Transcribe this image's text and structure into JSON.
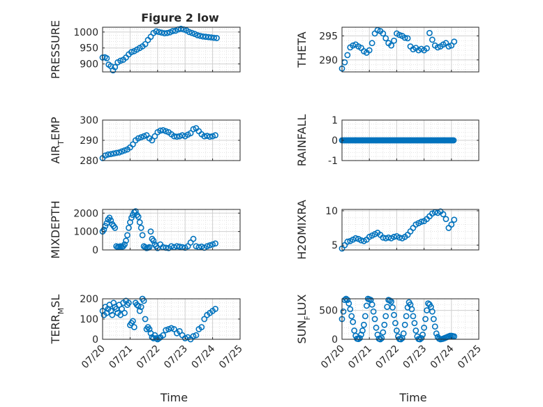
{
  "title": "Figure 2 low",
  "chart_data": [
    {
      "type": "scatter",
      "ylabel": "PRESSURE",
      "xlabel": "",
      "xlim": [
        0,
        5
      ],
      "ylim": [
        875,
        1015
      ],
      "yticks": [
        900,
        950,
        1000
      ],
      "grid": true,
      "x": [
        0.0,
        0.08,
        0.15,
        0.22,
        0.3,
        0.38,
        0.45,
        0.55,
        0.65,
        0.75,
        0.85,
        0.95,
        1.05,
        1.15,
        1.25,
        1.35,
        1.45,
        1.55,
        1.65,
        1.75,
        1.85,
        1.95,
        2.05,
        2.15,
        2.25,
        2.35,
        2.45,
        2.55,
        2.65,
        2.75,
        2.85,
        2.95,
        3.05,
        3.15,
        3.25,
        3.35,
        3.45,
        3.55,
        3.65,
        3.75,
        3.85,
        3.95,
        4.05,
        4.15
      ],
      "y": [
        920,
        921,
        918,
        898,
        893,
        880,
        890,
        905,
        910,
        913,
        920,
        930,
        937,
        940,
        945,
        950,
        955,
        962,
        975,
        985,
        997,
        1002,
        1000,
        998,
        996,
        997,
        999,
        1003,
        1004,
        1008,
        1010,
        1008,
        1005,
        1000,
        997,
        994,
        990,
        988,
        986,
        985,
        984,
        983,
        982,
        981
      ],
      "series_color": "#0072BD"
    },
    {
      "type": "scatter",
      "ylabel": "THETA",
      "xlabel": "",
      "xlim": [
        0,
        5
      ],
      "ylim": [
        287.5,
        296.8
      ],
      "yticks": [
        290,
        295
      ],
      "grid": true,
      "x": [
        0.0,
        0.1,
        0.2,
        0.3,
        0.4,
        0.5,
        0.6,
        0.7,
        0.8,
        0.9,
        1.0,
        1.1,
        1.2,
        1.3,
        1.4,
        1.5,
        1.6,
        1.7,
        1.8,
        1.9,
        2.0,
        2.1,
        2.2,
        2.3,
        2.4,
        2.5,
        2.6,
        2.7,
        2.8,
        2.9,
        3.0,
        3.1,
        3.2,
        3.3,
        3.4,
        3.5,
        3.6,
        3.7,
        3.8,
        3.9,
        4.0,
        4.1
      ],
      "y": [
        288.2,
        289.5,
        291,
        292.6,
        293.0,
        293.2,
        292.8,
        292.5,
        291.8,
        291.5,
        292,
        293.5,
        295.5,
        296.2,
        296.0,
        295.5,
        294.5,
        293.5,
        293.0,
        294.0,
        295.5,
        295.2,
        295.0,
        294.6,
        294.5,
        292.8,
        292.2,
        292.5,
        292.0,
        292.3,
        292.0,
        292.4,
        295.6,
        294.2,
        293.0,
        292.6,
        292.8,
        293.2,
        293.5,
        292.8,
        293.0,
        293.8
      ],
      "series_color": "#0072BD"
    },
    {
      "type": "scatter",
      "ylabel": "AIR_TEMP",
      "ylabel_main": "AIR",
      "ylabel_sub": "T",
      "ylabel_rest": "EMP",
      "xlabel": "",
      "xlim": [
        0,
        5
      ],
      "ylim": [
        280,
        300
      ],
      "yticks": [
        280,
        290,
        300
      ],
      "grid": true,
      "x": [
        0.0,
        0.1,
        0.2,
        0.3,
        0.4,
        0.5,
        0.6,
        0.7,
        0.8,
        0.9,
        1.0,
        1.1,
        1.2,
        1.3,
        1.4,
        1.5,
        1.6,
        1.7,
        1.8,
        1.9,
        2.0,
        2.1,
        2.2,
        2.3,
        2.4,
        2.5,
        2.6,
        2.7,
        2.8,
        2.9,
        3.0,
        3.1,
        3.2,
        3.3,
        3.4,
        3.5,
        3.6,
        3.7,
        3.8,
        3.9,
        4.0,
        4.1
      ],
      "y": [
        281.2,
        282.5,
        283.0,
        283.2,
        283.5,
        283.8,
        284.0,
        284.5,
        285.0,
        285.5,
        286.5,
        288,
        290,
        291,
        291.5,
        292.0,
        292.5,
        291.0,
        290.0,
        292.0,
        294.0,
        294.8,
        295.0,
        294.5,
        294.0,
        293.0,
        292.0,
        291.8,
        292.0,
        292.5,
        292.0,
        292.8,
        293.5,
        295.5,
        296.0,
        294.5,
        293.0,
        292.0,
        292.2,
        291.8,
        292.0,
        292.5
      ],
      "series_color": "#0072BD"
    },
    {
      "type": "scatter",
      "ylabel": "RAINFALL",
      "xlabel": "",
      "xlim": [
        0,
        5
      ],
      "ylim": [
        -1,
        1
      ],
      "yticks": [
        -1,
        0,
        1
      ],
      "grid": true,
      "x_start": 0.0,
      "x_end": 4.1,
      "x_step": 0.04,
      "y_const": 0,
      "series_color": "#0072BD"
    },
    {
      "type": "scatter",
      "ylabel": "MIXDEPTH",
      "xlabel": "",
      "xlim": [
        0,
        5
      ],
      "ylim": [
        0,
        2200
      ],
      "yticks": [
        0,
        1000,
        2000
      ],
      "grid": true,
      "x": [
        0.0,
        0.05,
        0.1,
        0.15,
        0.2,
        0.25,
        0.3,
        0.35,
        0.4,
        0.45,
        0.5,
        0.55,
        0.6,
        0.65,
        0.7,
        0.75,
        0.8,
        0.85,
        0.9,
        0.95,
        1.0,
        1.05,
        1.1,
        1.15,
        1.2,
        1.25,
        1.3,
        1.35,
        1.4,
        1.45,
        1.5,
        1.55,
        1.6,
        1.65,
        1.7,
        1.75,
        1.8,
        1.85,
        1.9,
        1.95,
        2.0,
        2.1,
        2.2,
        2.3,
        2.4,
        2.5,
        2.6,
        2.7,
        2.8,
        2.9,
        3.0,
        3.1,
        3.2,
        3.3,
        3.4,
        3.5,
        3.6,
        3.7,
        3.8,
        3.9,
        4.0,
        4.1
      ],
      "y": [
        1000,
        1100,
        1300,
        1450,
        1650,
        1750,
        1600,
        1400,
        1300,
        1200,
        200,
        150,
        180,
        200,
        160,
        200,
        300,
        500,
        800,
        1200,
        1500,
        1750,
        1900,
        2050,
        2100,
        1900,
        1800,
        1500,
        1200,
        800,
        200,
        150,
        100,
        120,
        150,
        1000,
        600,
        500,
        300,
        200,
        100,
        300,
        150,
        120,
        100,
        200,
        150,
        200,
        180,
        150,
        120,
        200,
        400,
        600,
        200,
        150,
        180,
        120,
        200,
        250,
        300,
        350
      ],
      "series_color": "#0072BD"
    },
    {
      "type": "scatter",
      "ylabel": "H2OMIXRA",
      "xlabel": "",
      "xlim": [
        0,
        5
      ],
      "ylim": [
        4.3,
        10.2
      ],
      "yticks": [
        5,
        10
      ],
      "grid": true,
      "x": [
        0.0,
        0.1,
        0.2,
        0.3,
        0.4,
        0.5,
        0.6,
        0.7,
        0.8,
        0.9,
        1.0,
        1.1,
        1.2,
        1.3,
        1.4,
        1.5,
        1.6,
        1.7,
        1.8,
        1.9,
        2.0,
        2.1,
        2.2,
        2.3,
        2.4,
        2.5,
        2.6,
        2.7,
        2.8,
        2.9,
        3.0,
        3.1,
        3.2,
        3.3,
        3.4,
        3.5,
        3.6,
        3.7,
        3.8,
        3.9,
        4.0,
        4.1
      ],
      "y": [
        4.5,
        5.0,
        5.5,
        5.6,
        5.8,
        6.0,
        5.9,
        5.7,
        5.6,
        5.8,
        6.2,
        6.4,
        6.6,
        6.8,
        6.5,
        6.1,
        6.0,
        6.1,
        6.0,
        6.2,
        6.3,
        6.1,
        6.0,
        6.2,
        6.5,
        7.0,
        7.5,
        8.0,
        8.2,
        8.4,
        8.5,
        8.8,
        9.2,
        9.6,
        9.8,
        9.7,
        9.9,
        9.5,
        8.8,
        7.5,
        8.0,
        8.7
      ],
      "series_color": "#0072BD"
    },
    {
      "type": "scatter",
      "ylabel": "TERR_MSL",
      "ylabel_main": "TERR",
      "ylabel_sub": "M",
      "ylabel_rest": "SL",
      "xlabel": "Time",
      "xlim": [
        0,
        5
      ],
      "ylim": [
        0,
        200
      ],
      "yticks": [
        0,
        100,
        200
      ],
      "xticks": [
        "07/20",
        "07/21",
        "07/22",
        "07/23",
        "07/24",
        "07/25"
      ],
      "grid": true,
      "x": [
        0.0,
        0.05,
        0.1,
        0.15,
        0.2,
        0.25,
        0.3,
        0.35,
        0.4,
        0.45,
        0.5,
        0.55,
        0.6,
        0.65,
        0.7,
        0.75,
        0.8,
        0.85,
        0.9,
        0.95,
        1.0,
        1.05,
        1.1,
        1.15,
        1.2,
        1.25,
        1.3,
        1.35,
        1.4,
        1.45,
        1.5,
        1.55,
        1.6,
        1.65,
        1.7,
        1.75,
        1.8,
        1.85,
        1.9,
        1.95,
        2.0,
        2.05,
        2.1,
        2.2,
        2.3,
        2.4,
        2.5,
        2.6,
        2.7,
        2.8,
        2.9,
        3.0,
        3.1,
        3.2,
        3.3,
        3.4,
        3.5,
        3.6,
        3.7,
        3.8,
        3.9,
        4.0,
        4.1
      ],
      "y": [
        140,
        120,
        160,
        130,
        150,
        170,
        140,
        120,
        180,
        160,
        150,
        130,
        170,
        120,
        150,
        180,
        130,
        190,
        170,
        180,
        70,
        80,
        90,
        60,
        180,
        170,
        165,
        140,
        160,
        200,
        190,
        100,
        50,
        60,
        50,
        30,
        10,
        5,
        20,
        5,
        0,
        5,
        10,
        20,
        45,
        50,
        55,
        50,
        30,
        40,
        20,
        5,
        10,
        0,
        15,
        20,
        50,
        60,
        100,
        120,
        130,
        140,
        150
      ],
      "series_color": "#0072BD"
    },
    {
      "type": "scatter",
      "ylabel": "SUN_FLUX",
      "ylabel_main": "SUN",
      "ylabel_sub": "F",
      "ylabel_rest": "LUX",
      "xlabel": "Time",
      "xlim": [
        0,
        5
      ],
      "ylim": [
        0,
        700
      ],
      "yticks": [
        0,
        500
      ],
      "xticks": [
        "07/20",
        "07/21",
        "07/22",
        "07/23",
        "07/24",
        "07/25"
      ],
      "grid": true,
      "x": [
        0.0,
        0.05,
        0.1,
        0.15,
        0.2,
        0.25,
        0.3,
        0.35,
        0.4,
        0.45,
        0.5,
        0.55,
        0.6,
        0.65,
        0.7,
        0.75,
        0.8,
        0.85,
        0.9,
        0.95,
        1.0,
        1.05,
        1.1,
        1.15,
        1.2,
        1.25,
        1.3,
        1.35,
        1.4,
        1.45,
        1.5,
        1.55,
        1.6,
        1.65,
        1.7,
        1.75,
        1.8,
        1.85,
        1.9,
        1.95,
        2.0,
        2.05,
        2.1,
        2.15,
        2.2,
        2.25,
        2.3,
        2.35,
        2.4,
        2.45,
        2.5,
        2.55,
        2.6,
        2.65,
        2.7,
        2.75,
        2.8,
        2.85,
        2.9,
        2.95,
        3.0,
        3.05,
        3.1,
        3.15,
        3.2,
        3.25,
        3.3,
        3.35,
        3.4,
        3.45,
        3.5,
        3.55,
        3.6,
        3.65,
        3.7,
        3.75,
        3.8,
        3.85,
        3.9,
        3.95,
        4.0,
        4.05,
        4.1
      ],
      "y": [
        350,
        480,
        680,
        700,
        680,
        620,
        520,
        400,
        300,
        150,
        60,
        10,
        5,
        20,
        80,
        150,
        250,
        400,
        580,
        700,
        690,
        680,
        600,
        480,
        350,
        200,
        80,
        10,
        0,
        20,
        120,
        250,
        400,
        560,
        680,
        670,
        650,
        550,
        420,
        280,
        150,
        50,
        5,
        0,
        20,
        100,
        250,
        400,
        550,
        640,
        600,
        520,
        400,
        280,
        150,
        50,
        5,
        0,
        20,
        80,
        200,
        350,
        500,
        620,
        600,
        560,
        480,
        350,
        220,
        100,
        40,
        10,
        0,
        5,
        10,
        20,
        30,
        40,
        50,
        60,
        60,
        55,
        50
      ],
      "series_color": "#0072BD"
    }
  ]
}
